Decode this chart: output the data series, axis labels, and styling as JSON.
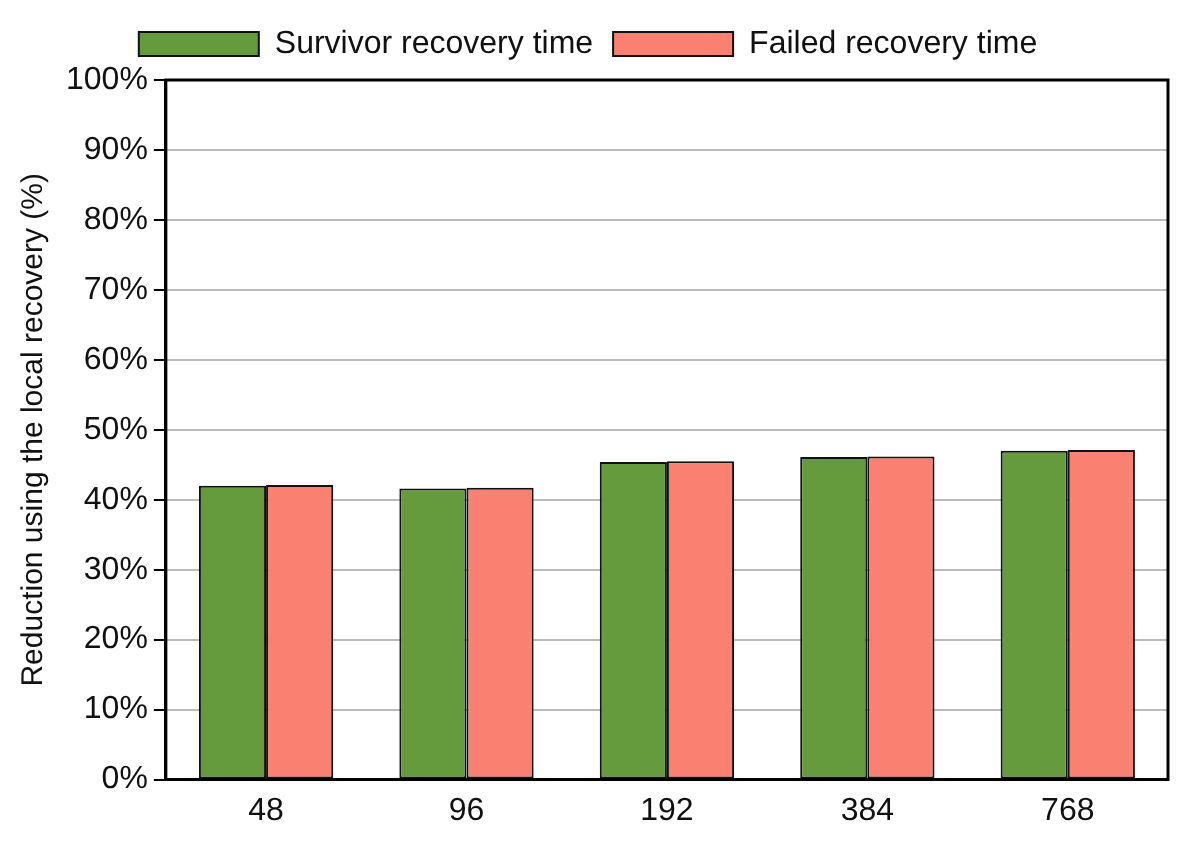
{
  "chart_data": {
    "type": "bar",
    "ylabel": "Reduction using the local recovery (%)",
    "categories": [
      "48",
      "96",
      "192",
      "384",
      "768"
    ],
    "series": [
      {
        "name": "Survivor recovery time",
        "color": "#659b3c",
        "values": [
          42.0,
          41.6,
          45.4,
          46.1,
          47.0
        ]
      },
      {
        "name": "Failed recovery time",
        "color": "#fa8072",
        "values": [
          42.1,
          41.7,
          45.5,
          46.2,
          47.1
        ]
      }
    ],
    "ylim": [
      0,
      100
    ],
    "yticks": [
      {
        "value": 0,
        "label": "0%"
      },
      {
        "value": 10,
        "label": "10%"
      },
      {
        "value": 20,
        "label": "20%"
      },
      {
        "value": 30,
        "label": "30%"
      },
      {
        "value": 40,
        "label": "40%"
      },
      {
        "value": 50,
        "label": "50%"
      },
      {
        "value": 60,
        "label": "60%"
      },
      {
        "value": 70,
        "label": "70%"
      },
      {
        "value": 80,
        "label": "80%"
      },
      {
        "value": 90,
        "label": "90%"
      },
      {
        "value": 100,
        "label": "100%"
      }
    ],
    "grid": "y",
    "legend": "top"
  }
}
